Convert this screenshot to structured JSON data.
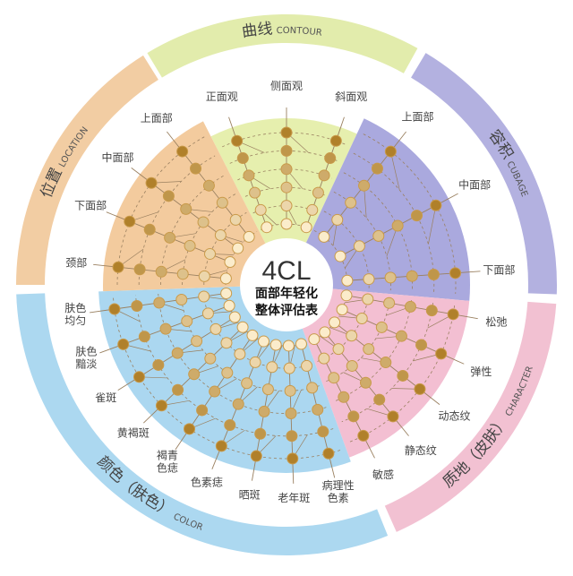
{
  "center": {
    "title": "4CL",
    "line1": "面部年轻化",
    "line2": "整体评估表"
  },
  "colors": {
    "node_dark": "#b0802a",
    "node_light": "#fbeccb",
    "node_stroke": "#c99a4a",
    "line": "#9a8060"
  },
  "sectors": [
    {
      "id": "contour",
      "ring_cn": "曲线",
      "ring_en": "CONTOUR",
      "fill": "#e6efae",
      "ring_fill": "#e2ecac",
      "labels": [
        "正面观",
        "侧面观",
        "斜面观"
      ]
    },
    {
      "id": "cubage",
      "ring_cn": "容积",
      "ring_en": "CUBAGE",
      "fill": "#aaa9de",
      "ring_fill": "#b3b1e0",
      "labels": [
        "上面部",
        "中面部",
        "下面部"
      ]
    },
    {
      "id": "character",
      "ring_cn": "质地（皮肤）",
      "ring_en": "CHARACTER",
      "fill": "#f3bfd2",
      "ring_fill": "#f2c1d2",
      "labels": [
        "松弛",
        "弹性",
        "动态纹",
        "静态纹",
        "敏感"
      ]
    },
    {
      "id": "color",
      "ring_cn": "颜色（肤色）",
      "ring_en": "COLOR",
      "fill": "#abd7f0",
      "ring_fill": "#acd8f0",
      "labels": [
        "肤色\n均匀",
        "肤色\n黯淡",
        "雀斑",
        "黄褐斑",
        "褐青\n色痣",
        "色素痣",
        "晒斑",
        "老年斑",
        "病理性\n色素"
      ]
    },
    {
      "id": "location",
      "ring_cn": "位置",
      "ring_en": "LOCATION",
      "fill": "#f3cb9e",
      "ring_fill": "#f2cda3",
      "labels": [
        "颈部",
        "下面部",
        "中面部",
        "上面部"
      ]
    }
  ]
}
